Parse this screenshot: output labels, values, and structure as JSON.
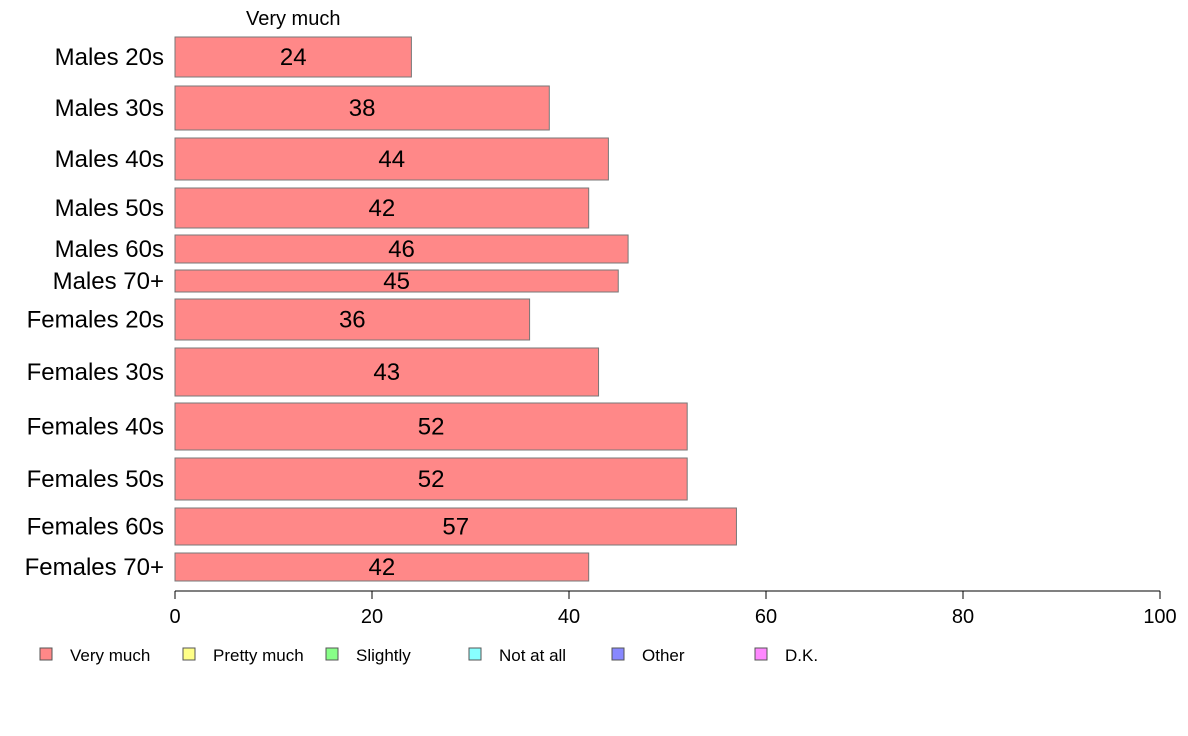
{
  "chart_data": {
    "type": "bar",
    "orientation": "horizontal",
    "stacked": true,
    "categories": [
      "Males 20s",
      "Males 30s",
      "Males 40s",
      "Males 50s",
      "Males 60s",
      "Males 70+",
      "Females 20s",
      "Females 30s",
      "Females 40s",
      "Females 50s",
      "Females 60s",
      "Females 70+"
    ],
    "series": [
      {
        "name": "Very much",
        "values": [
          24,
          38,
          44,
          42,
          46,
          45,
          36,
          43,
          52,
          52,
          57,
          42
        ],
        "color": "#ff8888"
      }
    ],
    "data_labels": [
      "24",
      "38",
      "44",
      "42",
      "46",
      "45",
      "36",
      "43",
      "52",
      "52",
      "57",
      "42"
    ],
    "xlim": [
      0,
      100
    ],
    "x_ticks": [
      0,
      20,
      40,
      60,
      80,
      100
    ],
    "x_tick_labels": [
      "0",
      "20",
      "40",
      "60",
      "80",
      "100"
    ],
    "grid": false,
    "legend": {
      "position": "bottom",
      "items": [
        {
          "label": "Very much",
          "color": "#ff8888"
        },
        {
          "label": "Pretty much",
          "color": "#ffff88"
        },
        {
          "label": "Slightly",
          "color": "#88ff88"
        },
        {
          "label": "Not at all",
          "color": "#88ffff"
        },
        {
          "label": "Other",
          "color": "#8888ff"
        },
        {
          "label": "D.K.",
          "color": "#ff88ff"
        }
      ]
    }
  }
}
